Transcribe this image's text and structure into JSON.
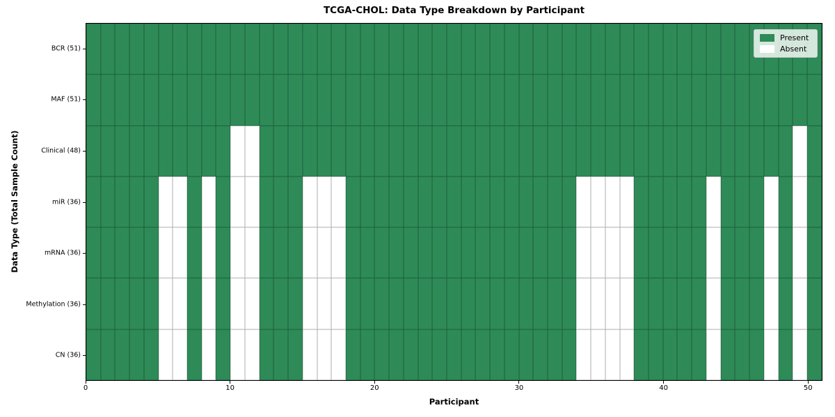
{
  "chart_data": {
    "type": "heatmap",
    "title": "TCGA-CHOL: Data Type Breakdown by Participant",
    "xlabel": "Participant",
    "ylabel": "Data Type (Total Sample Count)",
    "x_ticks": [
      0,
      10,
      20,
      30,
      40,
      50
    ],
    "x_range": [
      0,
      51
    ],
    "n_participants": 51,
    "grid": true,
    "legend_position": "upper right",
    "legend": {
      "present": "Present",
      "absent": "Absent"
    },
    "colors": {
      "present": "#2E8B57",
      "absent": "#FFFFFF"
    },
    "rows": [
      {
        "label": "BCR (51)",
        "data_type": "BCR",
        "present_count": 51,
        "absent_participants": []
      },
      {
        "label": "MAF (51)",
        "data_type": "MAF",
        "present_count": 51,
        "absent_participants": []
      },
      {
        "label": "Clinical (48)",
        "data_type": "Clinical",
        "present_count": 48,
        "absent_participants": [
          10,
          11,
          49
        ]
      },
      {
        "label": "miR (36)",
        "data_type": "miR",
        "present_count": 36,
        "absent_participants": [
          5,
          6,
          8,
          10,
          11,
          15,
          16,
          17,
          34,
          35,
          36,
          37,
          43,
          47,
          49
        ]
      },
      {
        "label": "mRNA (36)",
        "data_type": "mRNA",
        "present_count": 36,
        "absent_participants": [
          5,
          6,
          8,
          10,
          11,
          15,
          16,
          17,
          34,
          35,
          36,
          37,
          43,
          47,
          49
        ]
      },
      {
        "label": "Methylation (36)",
        "data_type": "Methylation",
        "present_count": 36,
        "absent_participants": [
          5,
          6,
          8,
          10,
          11,
          15,
          16,
          17,
          34,
          35,
          36,
          37,
          43,
          47,
          49
        ]
      },
      {
        "label": "CN (36)",
        "data_type": "CN",
        "present_count": 36,
        "absent_participants": [
          5,
          6,
          8,
          10,
          11,
          15,
          16,
          17,
          34,
          35,
          36,
          37,
          43,
          47,
          49
        ]
      }
    ]
  }
}
